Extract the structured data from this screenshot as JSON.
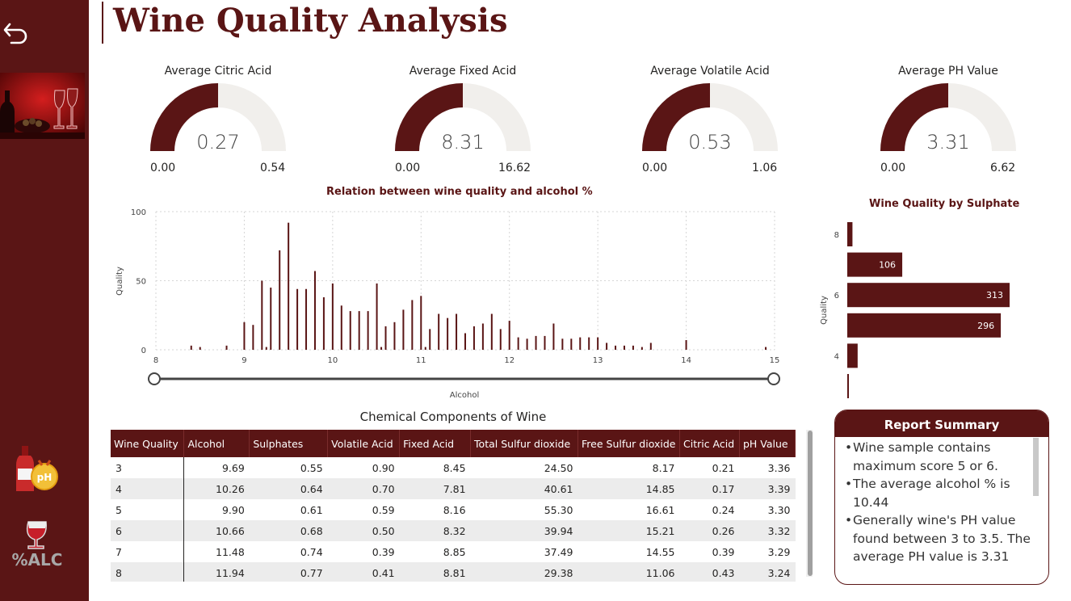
{
  "app": {
    "title": "Wine Quality Analysis"
  },
  "colors": {
    "accent": "#5a1515",
    "gauge_track": "#f1efec",
    "sidebar": "#5a1515"
  },
  "sidebar": {
    "back_icon": "back-arrow-icon",
    "image": "wine-bottle-and-glasses-photo",
    "nav": [
      {
        "icon": "wine-ph-icon",
        "badge_text": "pH"
      },
      {
        "icon": "alcohol-percent-icon",
        "badge_text": "%ALC"
      }
    ]
  },
  "gauges": [
    {
      "title": "Average Citric Acid",
      "value": "0.27",
      "min": "0.00",
      "max": "0.54",
      "fraction": 0.5
    },
    {
      "title": "Average Fixed Acid",
      "value": "8.31",
      "min": "0.00",
      "max": "16.62",
      "fraction": 0.5
    },
    {
      "title": "Average Volatile Acid",
      "value": "0.53",
      "min": "0.00",
      "max": "1.06",
      "fraction": 0.5
    },
    {
      "title": "Average PH Value",
      "value": "3.31",
      "min": "0.00",
      "max": "6.62",
      "fraction": 0.5
    }
  ],
  "chart_data": [
    {
      "type": "bar",
      "title": "Relation between wine quality and alcohol %",
      "xlabel": "Alcohol",
      "ylabel": "Quality",
      "xlim": [
        8,
        15
      ],
      "ylim": [
        0,
        100
      ],
      "xticks": [
        "8",
        "9",
        "10",
        "11",
        "12",
        "13",
        "14",
        "15"
      ],
      "yticks": [
        "100",
        "50",
        "0"
      ],
      "grid": true,
      "slider": {
        "min": 8,
        "max": 15
      },
      "x": [
        8.4,
        8.5,
        8.8,
        9.0,
        9.1,
        9.2,
        9.25,
        9.3,
        9.4,
        9.5,
        9.6,
        9.7,
        9.8,
        9.9,
        10.0,
        10.1,
        10.2,
        10.3,
        10.4,
        10.5,
        10.55,
        10.6,
        10.7,
        10.8,
        10.9,
        11.0,
        11.05,
        11.1,
        11.2,
        11.3,
        11.4,
        11.5,
        11.6,
        11.7,
        11.8,
        11.9,
        12.0,
        12.1,
        12.2,
        12.3,
        12.4,
        12.5,
        12.6,
        12.7,
        12.8,
        12.9,
        13.0,
        13.1,
        13.2,
        13.3,
        13.4,
        13.5,
        13.6,
        14.0,
        14.9
      ],
      "y": [
        3,
        2,
        3,
        20,
        18,
        50,
        2,
        45,
        72,
        92,
        44,
        44,
        57,
        38,
        48,
        32,
        28,
        28,
        28,
        48,
        2,
        17,
        20,
        29,
        36,
        39,
        2,
        15,
        26,
        23,
        26,
        12,
        17,
        19,
        26,
        15,
        21,
        9,
        8,
        10,
        10,
        19,
        8,
        8,
        9,
        9,
        9,
        5,
        3,
        3,
        3,
        2,
        5,
        7,
        2
      ]
    },
    {
      "type": "bar",
      "orientation": "horizontal",
      "title": "Wine Quality by Sulphate",
      "ylabel": "Quality",
      "categories": [
        "8",
        "7",
        "6",
        "5",
        "4",
        "3"
      ],
      "tick_labels": [
        "8",
        "",
        "6",
        "",
        "4",
        ""
      ],
      "values": [
        10,
        106,
        313,
        296,
        20,
        2
      ],
      "data_labels": [
        "",
        "106",
        "313",
        "296",
        "",
        ""
      ],
      "xlim": [
        0,
        313
      ]
    }
  ],
  "table": {
    "title": "Chemical Components of Wine",
    "headers": [
      "Wine Quality",
      "Alcohol",
      "Sulphates",
      "Volatile Acid",
      "Fixed Acid",
      "Total Sulfur dioxide",
      "Free Sulfur dioxide",
      "Citric Acid",
      "pH Value"
    ],
    "rows": [
      [
        "3",
        "9.69",
        "0.55",
        "0.90",
        "8.45",
        "24.50",
        "8.17",
        "0.21",
        "3.36"
      ],
      [
        "4",
        "10.26",
        "0.64",
        "0.70",
        "7.81",
        "40.61",
        "14.85",
        "0.17",
        "3.39"
      ],
      [
        "5",
        "9.90",
        "0.61",
        "0.59",
        "8.16",
        "55.30",
        "16.61",
        "0.24",
        "3.30"
      ],
      [
        "6",
        "10.66",
        "0.68",
        "0.50",
        "8.32",
        "39.94",
        "15.21",
        "0.26",
        "3.32"
      ],
      [
        "7",
        "11.48",
        "0.74",
        "0.39",
        "8.85",
        "37.49",
        "14.55",
        "0.39",
        "3.29"
      ],
      [
        "8",
        "11.94",
        "0.77",
        "0.41",
        "8.81",
        "29.38",
        "11.06",
        "0.43",
        "3.24"
      ]
    ]
  },
  "summary": {
    "title": "Report Summary",
    "items": [
      "Wine sample contains maximum score 5 or 6.",
      "The average alcohol % is 10.44",
      "Generally wine's PH value found between 3 to 3.5. The average PH value is 3.31"
    ]
  }
}
